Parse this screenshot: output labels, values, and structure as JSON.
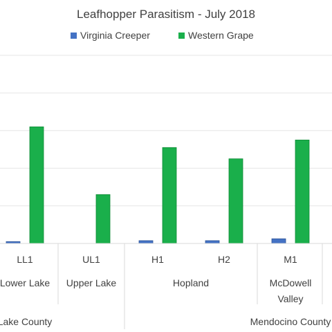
{
  "chart_data": {
    "type": "bar",
    "title": "Leafhopper Parasitism - July 2018",
    "xlabel": "",
    "ylabel": "",
    "ylim": [
      0,
      100
    ],
    "grid": true,
    "legend_placement": "top",
    "categories": [
      "LL1",
      "UL1",
      "H1",
      "H2",
      "M1"
    ],
    "site_labels": [
      {
        "lines": [
          "Lower Lake"
        ]
      },
      {
        "lines": [
          "Upper Lake"
        ]
      },
      {
        "lines": [
          "Hopland"
        ]
      },
      {
        "lines": [
          "McDowell",
          "Valley"
        ]
      }
    ],
    "county_labels": [
      "Lake County",
      "Mendocino County"
    ],
    "series": [
      {
        "name": "Virginia Creeper",
        "color": "#4472c4",
        "values": [
          1,
          0,
          1.5,
          1.5,
          2.5
        ]
      },
      {
        "name": "Western Grape",
        "color": "#1aaf4b",
        "values": [
          62,
          26,
          51,
          45,
          55
        ]
      }
    ]
  }
}
